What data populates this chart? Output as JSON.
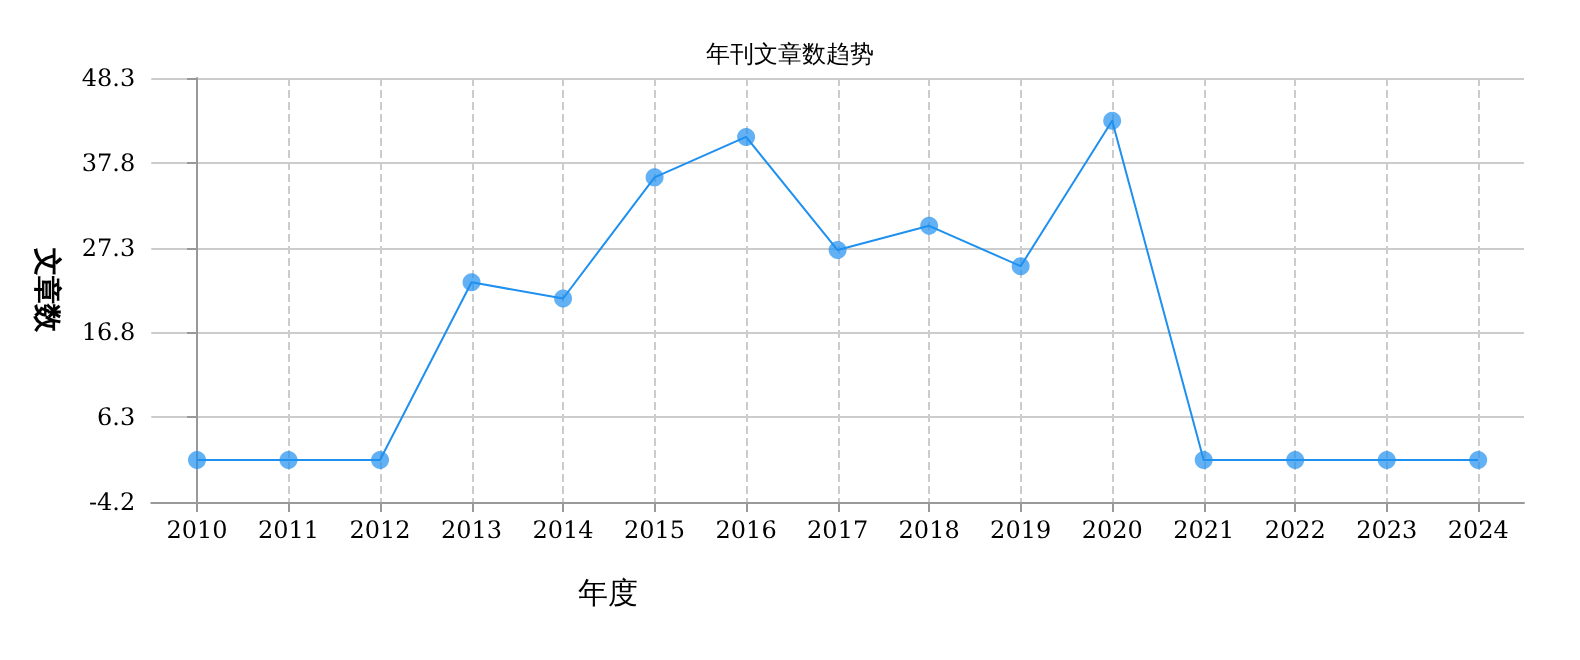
{
  "chart_data": {
    "type": "line",
    "title": "年刊文章数趋势",
    "xlabel": "年度",
    "ylabel": "文章数",
    "categories": [
      "2010",
      "2011",
      "2012",
      "2013",
      "2014",
      "2015",
      "2016",
      "2017",
      "2018",
      "2019",
      "2020",
      "2021",
      "2022",
      "2023",
      "2024"
    ],
    "series": [
      {
        "color": "#1e90f0",
        "values": [
          1,
          1,
          1,
          23,
          21,
          36,
          41,
          27,
          30,
          25,
          43,
          1,
          1,
          1,
          1
        ]
      }
    ],
    "ylim": [
      -4.2,
      48.3
    ],
    "yticks": [
      -4.2,
      6.3,
      16.8,
      27.3,
      37.8,
      48.3
    ],
    "grid": true,
    "marker": "circle",
    "line_style": "solid"
  }
}
